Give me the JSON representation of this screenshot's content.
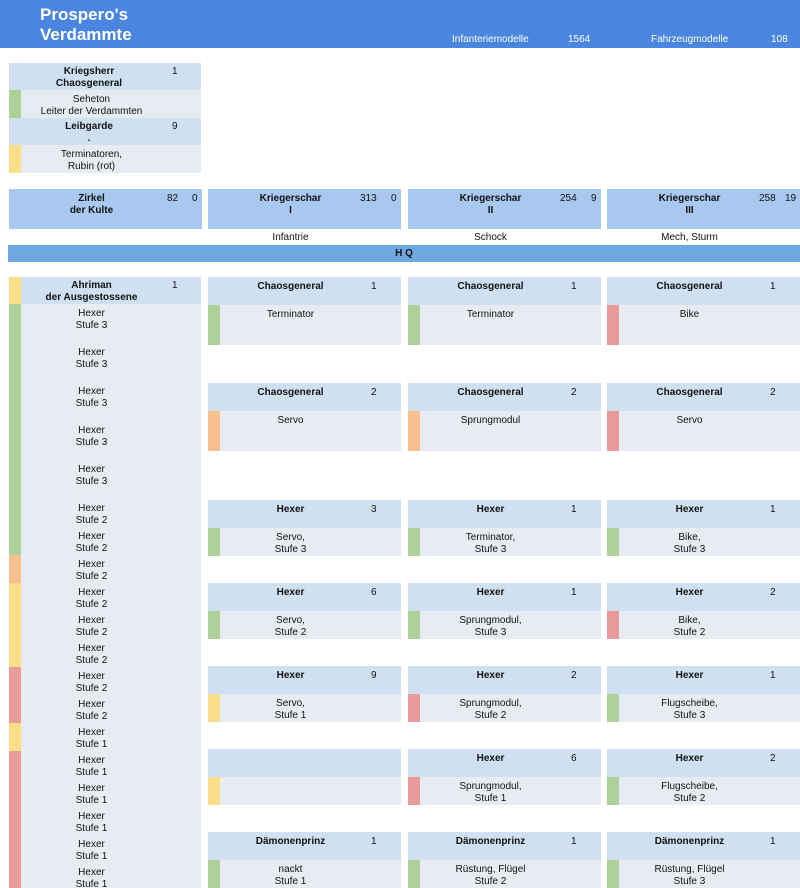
{
  "header": {
    "title": "Prospero's\nVerdammte",
    "infantry_label": "Infanteriemodelle",
    "infantry_count": "1564",
    "vehicle_label": "Fahrzeugmodelle",
    "vehicle_count": "108"
  },
  "warlord": {
    "title": "Kriegsherr\nChaosgeneral",
    "count": "1",
    "member": "Seheton\nLeiter der Verdammten",
    "guard_title": "Leibgarde\n.",
    "guard_count": "9",
    "guard_member": "Terminatoren,\nRubin (rot)"
  },
  "columns": [
    {
      "title": "Zirkel\nder Kulte",
      "a": "82",
      "b": "0",
      "subtitle": ""
    },
    {
      "title": "Kriegerschar\nI",
      "a": "313",
      "b": "0",
      "subtitle": "Infantrie"
    },
    {
      "title": "Kriegerschar\nII",
      "a": "254",
      "b": "9",
      "subtitle": "Schock"
    },
    {
      "title": "Kriegerschar\nIII",
      "a": "258",
      "b": "19",
      "subtitle": "Mech, Sturm"
    }
  ],
  "hq": "H  Q",
  "ahriman": {
    "title": "Ahriman\nder Ausgestossene",
    "count": "1",
    "items": [
      "Hexer\nStufe 3",
      "Hexer\nStufe 3",
      "Hexer\nStufe 3",
      "Hexer\nStufe 3",
      "Hexer\nStufe 3",
      "Hexer\nStufe 2",
      "Hexer\nStufe 2",
      "Hexer\nStufe 2",
      "Hexer\nStufe 2",
      "Hexer\nStufe 2",
      "Hexer\nStufe 2",
      "Hexer\nStufe 2",
      "Hexer\nStufe 2",
      "Hexer\nStufe 1",
      "Hexer\nStufe 1",
      "Hexer\nStufe 1",
      "Hexer\nStufe 1",
      "Hexer\nStufe 1",
      "Hexer\nStufe 1"
    ]
  },
  "units": [
    [
      {
        "t": "Chaosgeneral",
        "n": "1",
        "d": "Terminator",
        "c": "#aed19a"
      },
      {
        "t": "Chaosgeneral",
        "n": "2",
        "d": "Servo",
        "c": "#f8c08f"
      },
      {
        "t": "Hexer",
        "n": "3",
        "d": "Servo,\nStufe 3",
        "c": "#aed19a"
      },
      {
        "t": "Hexer",
        "n": "6",
        "d": "Servo,\nStufe 2",
        "c": "#aed19a"
      },
      {
        "t": "Hexer",
        "n": "9",
        "d": "Servo,\nStufe 1",
        "c": "#fbdf88"
      },
      {
        "t": "",
        "n": "",
        "d": "",
        "c": "#fbdf88"
      },
      {
        "t": "Dämonenprinz",
        "n": "1",
        "d": "nackt\nStufe 1",
        "c": "#aed19a"
      }
    ],
    [
      {
        "t": "Chaosgeneral",
        "n": "1",
        "d": "Terminator",
        "c": "#aed19a"
      },
      {
        "t": "Chaosgeneral",
        "n": "2",
        "d": "Sprungmodul",
        "c": "#f8c08f"
      },
      {
        "t": "Hexer",
        "n": "1",
        "d": "Terminator,\nStufe 3",
        "c": "#aed19a"
      },
      {
        "t": "Hexer",
        "n": "1",
        "d": "Sprungmodul,\nStufe 3",
        "c": "#aed19a"
      },
      {
        "t": "Hexer",
        "n": "2",
        "d": "Sprungmodul,\nStufe 2",
        "c": "#e99a9a"
      },
      {
        "t": "Hexer",
        "n": "6",
        "d": "Sprungmodul,\nStufe 1",
        "c": "#e99a9a"
      },
      {
        "t": "Dämonenprinz",
        "n": "1",
        "d": "Rüstung, Flügel\nStufe 2",
        "c": "#aed19a"
      }
    ],
    [
      {
        "t": "Chaosgeneral",
        "n": "1",
        "d": "Bike",
        "c": "#e99a9a"
      },
      {
        "t": "Chaosgeneral",
        "n": "2",
        "d": "Servo",
        "c": "#e99a9a"
      },
      {
        "t": "Hexer",
        "n": "1",
        "d": "Bike,\nStufe 3",
        "c": "#aed19a"
      },
      {
        "t": "Hexer",
        "n": "2",
        "d": "Bike,\nStufe 2",
        "c": "#e99a9a"
      },
      {
        "t": "Hexer",
        "n": "1",
        "d": "Flugscheibe,\nStufe 3",
        "c": "#aed19a"
      },
      {
        "t": "Hexer",
        "n": "2",
        "d": "Flugscheibe,\nStufe 2",
        "c": "#aed19a"
      },
      {
        "t": "Dämonenprinz",
        "n": "1",
        "d": "Rüstung, Flügel\nStufe 3",
        "c": "#aed19a"
      }
    ]
  ]
}
